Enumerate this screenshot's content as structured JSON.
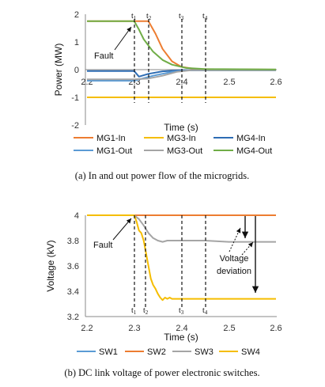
{
  "chart_data": [
    {
      "type": "line",
      "caption": "(a) In and out power flow of the microgrids.",
      "xlabel": "Time (s)",
      "ylabel": "Power (MW)",
      "xlim": [
        2.2,
        2.6
      ],
      "ylim": [
        -2,
        2
      ],
      "xticks": [
        "2.2",
        "2.3",
        "2.4",
        "2.5",
        "2.6"
      ],
      "yticks": [
        "2",
        "1",
        "0",
        "-1",
        "-2"
      ],
      "grid": false,
      "legend_position": "bottom",
      "markers": [
        {
          "label": "t1",
          "x": 2.3
        },
        {
          "label": "t2",
          "x": 2.33
        },
        {
          "label": "t3",
          "x": 2.4
        },
        {
          "label": "t4",
          "x": 2.45
        }
      ],
      "annotations": [
        {
          "text": "Fault",
          "x": 2.3,
          "y": 1.75
        }
      ],
      "series": [
        {
          "name": "MG1-In",
          "color": "#ED7D31",
          "x": [
            2.2,
            2.33,
            2.345,
            2.36,
            2.38,
            2.4,
            2.43,
            2.6
          ],
          "y": [
            1.75,
            1.75,
            1.3,
            0.75,
            0.3,
            0.1,
            0.02,
            0
          ]
        },
        {
          "name": "MG3-In",
          "color": "#F5BD00",
          "x": [
            2.2,
            2.6
          ],
          "y": [
            -1,
            -1
          ]
        },
        {
          "name": "MG4-In",
          "color": "#2E6DB4",
          "x": [
            2.2,
            2.3,
            2.31,
            2.33,
            2.36,
            2.4,
            2.6
          ],
          "y": [
            -0.05,
            -0.05,
            -0.25,
            -0.15,
            -0.06,
            -0.02,
            -0.02
          ]
        },
        {
          "name": "MG1-Out",
          "color": "#5B9BD5",
          "x": [
            2.2,
            2.3,
            2.34,
            2.38,
            2.41,
            2.6
          ],
          "y": [
            -0.4,
            -0.4,
            -0.22,
            -0.08,
            -0.03,
            -0.03
          ]
        },
        {
          "name": "MG3-Out",
          "color": "#A5A5A5",
          "x": [
            2.2,
            2.3,
            2.33,
            2.36,
            2.39,
            2.42,
            2.6
          ],
          "y": [
            -0.35,
            -0.35,
            -0.32,
            -0.22,
            -0.08,
            -0.02,
            -0.02
          ]
        },
        {
          "name": "MG4-Out",
          "color": "#70AD47",
          "x": [
            2.2,
            2.3,
            2.31,
            2.32,
            2.34,
            2.36,
            2.38,
            2.41,
            2.45,
            2.6
          ],
          "y": [
            1.75,
            1.75,
            1.45,
            1.1,
            0.65,
            0.35,
            0.18,
            0.06,
            0.02,
            0.01
          ]
        }
      ]
    },
    {
      "type": "line",
      "caption": "(b) DC link voltage of power electronic switches.",
      "xlabel": "Time (s)",
      "ylabel": "Voltage (kV)",
      "xlim": [
        2.2,
        2.6
      ],
      "ylim": [
        3.2,
        4.0
      ],
      "xticks": [
        "2.2",
        "2.3",
        "2.4",
        "2.5",
        "2.6"
      ],
      "yticks": [
        "4",
        "3.8",
        "3.6",
        "3.4",
        "3.2"
      ],
      "grid": false,
      "legend_position": "bottom",
      "markers": [
        {
          "label": "t1",
          "x": 2.3
        },
        {
          "label": "t2",
          "x": 2.32
        },
        {
          "label": "t3",
          "x": 2.4
        },
        {
          "label": "t4",
          "x": 2.45
        }
      ],
      "annotations": [
        {
          "text": "Fault",
          "x": 2.3,
          "y": 3.99
        },
        {
          "text": "Voltage",
          "x": 2.56,
          "y": 3.7
        },
        {
          "text": "deviation",
          "x": 2.56,
          "y": 3.62
        }
      ],
      "series": [
        {
          "name": "SW1",
          "color": "#5B9BD5",
          "x": [
            2.2,
            2.6
          ],
          "y": [
            4.0,
            4.0
          ]
        },
        {
          "name": "SW2",
          "color": "#ED7D31",
          "x": [
            2.2,
            2.6
          ],
          "y": [
            4.0,
            4.0
          ]
        },
        {
          "name": "SW3",
          "color": "#A5A5A5",
          "x": [
            2.2,
            2.3,
            2.31,
            2.32,
            2.33,
            2.34,
            2.35,
            2.36,
            2.37,
            2.38,
            2.4,
            2.45,
            2.5,
            2.6
          ],
          "y": [
            4.0,
            4.0,
            3.97,
            3.92,
            3.86,
            3.82,
            3.8,
            3.79,
            3.8,
            3.8,
            3.8,
            3.8,
            3.79,
            3.79
          ]
        },
        {
          "name": "SW4",
          "color": "#F5BD00",
          "x": [
            2.2,
            2.3,
            2.305,
            2.31,
            2.315,
            2.32,
            2.325,
            2.33,
            2.335,
            2.34,
            2.345,
            2.35,
            2.355,
            2.36,
            2.365,
            2.37,
            2.375,
            2.38,
            2.39,
            2.4,
            2.45,
            2.5,
            2.6
          ],
          "y": [
            4.0,
            4.0,
            3.95,
            3.88,
            3.86,
            3.8,
            3.7,
            3.6,
            3.5,
            3.45,
            3.42,
            3.38,
            3.35,
            3.33,
            3.35,
            3.34,
            3.35,
            3.34,
            3.34,
            3.34,
            3.34,
            3.34,
            3.34
          ]
        }
      ]
    }
  ]
}
